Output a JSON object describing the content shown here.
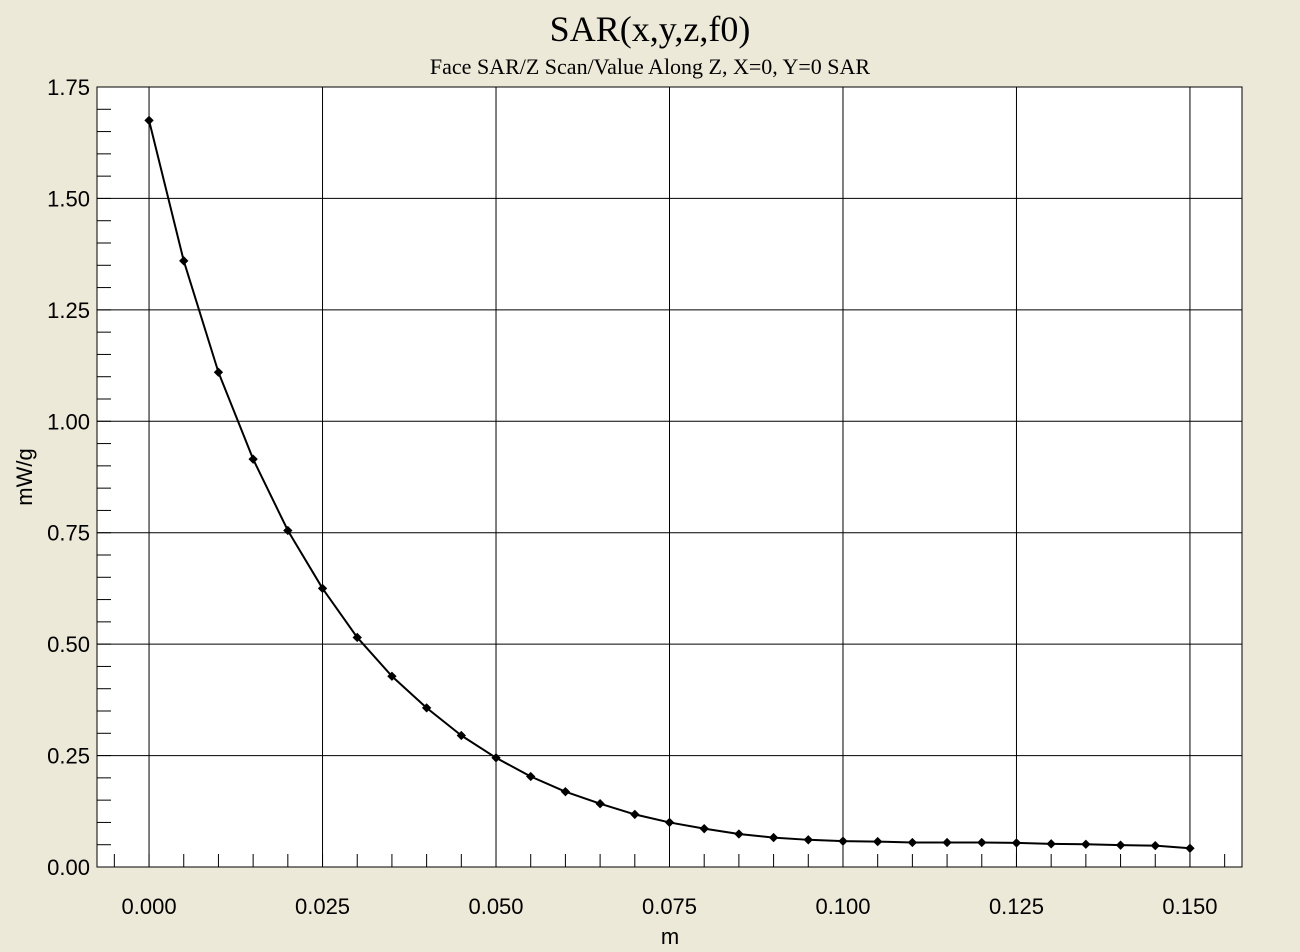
{
  "chart_data": {
    "type": "line",
    "title": "SAR(x,y,z,f0)",
    "subtitle": "Face SAR/Z Scan/Value Along Z, X=0, Y=0 SAR",
    "xlabel": "m",
    "ylabel": "mW/g",
    "xlim": [
      -0.0075,
      0.1575
    ],
    "ylim": [
      0,
      1.75
    ],
    "x_ticks": [
      0.0,
      0.025,
      0.05,
      0.075,
      0.1,
      0.125,
      0.15
    ],
    "x_tick_labels": [
      "0.000",
      "0.025",
      "0.050",
      "0.075",
      "0.100",
      "0.125",
      "0.150"
    ],
    "y_ticks": [
      0.0,
      0.25,
      0.5,
      0.75,
      1.0,
      1.25,
      1.5,
      1.75
    ],
    "y_tick_labels": [
      "0.00",
      "0.25",
      "0.50",
      "0.75",
      "1.00",
      "1.25",
      "1.50",
      "1.75"
    ],
    "grid": true,
    "legend": "none",
    "series": [
      {
        "marker": "diamond",
        "color": "#000000",
        "x": [
          0.0,
          0.005,
          0.01,
          0.015,
          0.02,
          0.025,
          0.03,
          0.035,
          0.04,
          0.045,
          0.05,
          0.055,
          0.06,
          0.065,
          0.07,
          0.075,
          0.08,
          0.085,
          0.09,
          0.095,
          0.1,
          0.105,
          0.11,
          0.115,
          0.12,
          0.125,
          0.13,
          0.135,
          0.14,
          0.145,
          0.15
        ],
        "y": [
          1.675,
          1.36,
          1.11,
          0.915,
          0.755,
          0.625,
          0.515,
          0.428,
          0.357,
          0.295,
          0.245,
          0.203,
          0.169,
          0.142,
          0.118,
          0.1,
          0.086,
          0.074,
          0.066,
          0.061,
          0.058,
          0.057,
          0.055,
          0.055,
          0.055,
          0.054,
          0.052,
          0.051,
          0.049,
          0.048,
          0.042
        ]
      }
    ]
  }
}
